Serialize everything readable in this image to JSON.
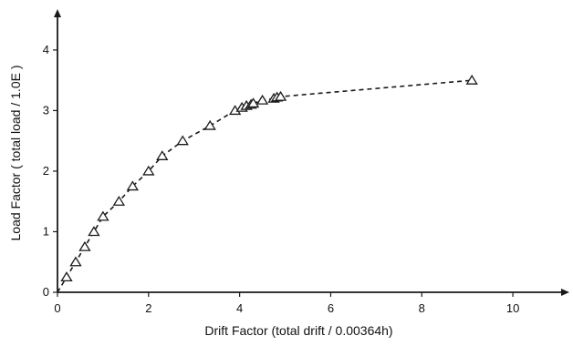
{
  "chart_data": {
    "type": "line",
    "xlabel": "Drift Factor (total drift / 0.00364h)",
    "ylabel": "Load Factor ( total load / 1.0E )",
    "xlim": [
      0,
      11
    ],
    "ylim": [
      0,
      4.6
    ],
    "x_ticks": [
      0,
      2,
      4,
      6,
      8,
      10
    ],
    "y_ticks": [
      0,
      1,
      2,
      3,
      4
    ],
    "x_tick_labels": [
      "0",
      "2",
      "4",
      "6",
      "8",
      "10"
    ],
    "y_tick_labels": [
      "0",
      "1",
      "2",
      "3",
      "4"
    ],
    "grid": false,
    "legend": "none",
    "line_style": "dashed",
    "marker": "open-triangle",
    "color": "#1a1a1a",
    "series": [
      {
        "x": [
          0,
          0.2,
          0.4,
          0.6,
          0.8,
          1.0,
          1.35,
          1.65,
          2.0,
          2.3,
          2.75,
          3.35,
          3.9,
          4.05,
          4.15,
          4.25,
          4.3,
          4.5,
          4.75,
          4.82,
          4.9,
          9.1
        ],
        "y": [
          0,
          0.25,
          0.5,
          0.75,
          1.0,
          1.25,
          1.5,
          1.75,
          2.0,
          2.25,
          2.5,
          2.75,
          3.0,
          3.05,
          3.08,
          3.1,
          3.12,
          3.17,
          3.2,
          3.22,
          3.23,
          3.5
        ]
      }
    ]
  }
}
